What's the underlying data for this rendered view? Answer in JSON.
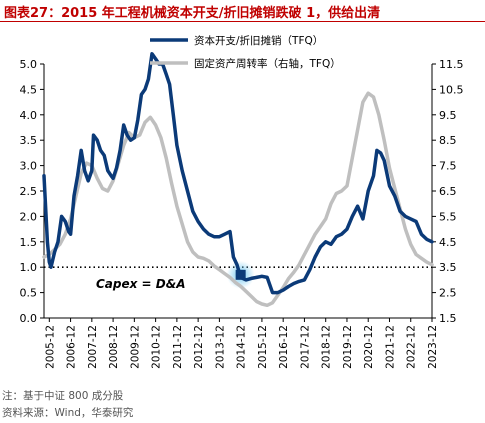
{
  "figure": {
    "title": "图表27：2015 年工程机械资本开支/折旧摊销跌破 1，供给出清",
    "note": "注：基于中证 800 成分股",
    "source": "资料来源：Wind，华泰研究"
  },
  "chart_data": {
    "type": "line",
    "title": "",
    "x_range": [
      2005.67,
      2023.92
    ],
    "x_tick_labels": [
      "2005-12",
      "2006-12",
      "2007-12",
      "2008-12",
      "2009-12",
      "2010-12",
      "2011-12",
      "2012-12",
      "2013-12",
      "2014-12",
      "2015-12",
      "2016-12",
      "2017-12",
      "2018-12",
      "2019-12",
      "2020-12",
      "2021-12",
      "2022-12",
      "2023-12"
    ],
    "x_tick_values": [
      2005.92,
      2006.92,
      2007.92,
      2008.92,
      2009.92,
      2010.92,
      2011.92,
      2012.92,
      2013.92,
      2014.92,
      2015.92,
      2016.92,
      2017.92,
      2018.92,
      2019.92,
      2020.92,
      2021.92,
      2022.92,
      2023.92
    ],
    "y_left": {
      "range": [
        0.0,
        5.0
      ],
      "ticks": [
        "0.0",
        "0.5",
        "1.0",
        "1.5",
        "2.0",
        "2.5",
        "3.0",
        "3.5",
        "4.0",
        "4.5",
        "5.0"
      ]
    },
    "y_right": {
      "range": [
        1.5,
        11.5
      ],
      "ticks": [
        "1.5",
        "2.5",
        "3.5",
        "4.5",
        "5.5",
        "6.5",
        "7.5",
        "8.5",
        "9.5",
        "10.5",
        "11.5"
      ]
    },
    "grid": false,
    "legend_position": "top-center",
    "reference_line": {
      "axis": "left",
      "value": 1.0,
      "style": "dotted"
    },
    "annotation": {
      "text": "Capex = D&A",
      "near": [
        2014.92,
        0.85
      ]
    },
    "series": [
      {
        "name": "资本开支/折旧摊销（TFQ）",
        "axis": "left",
        "color": "#0B3A78",
        "points": [
          [
            2005.67,
            2.8
          ],
          [
            2005.83,
            1.5
          ],
          [
            2005.92,
            1.1
          ],
          [
            2006.0,
            1.0
          ],
          [
            2006.17,
            1.3
          ],
          [
            2006.33,
            1.5
          ],
          [
            2006.5,
            2.0
          ],
          [
            2006.67,
            1.9
          ],
          [
            2006.83,
            1.7
          ],
          [
            2006.92,
            1.65
          ],
          [
            2007.08,
            2.4
          ],
          [
            2007.25,
            2.8
          ],
          [
            2007.42,
            3.3
          ],
          [
            2007.58,
            2.9
          ],
          [
            2007.75,
            2.7
          ],
          [
            2007.92,
            2.9
          ],
          [
            2008.0,
            3.6
          ],
          [
            2008.17,
            3.5
          ],
          [
            2008.33,
            3.3
          ],
          [
            2008.5,
            3.2
          ],
          [
            2008.67,
            2.9
          ],
          [
            2008.83,
            2.8
          ],
          [
            2008.92,
            2.75
          ],
          [
            2009.08,
            2.95
          ],
          [
            2009.25,
            3.3
          ],
          [
            2009.42,
            3.8
          ],
          [
            2009.58,
            3.6
          ],
          [
            2009.75,
            3.5
          ],
          [
            2009.92,
            3.55
          ],
          [
            2010.08,
            3.9
          ],
          [
            2010.25,
            4.4
          ],
          [
            2010.42,
            4.5
          ],
          [
            2010.58,
            4.7
          ],
          [
            2010.75,
            5.2
          ],
          [
            2010.92,
            5.1
          ],
          [
            2011.08,
            5.0
          ],
          [
            2011.25,
            5.0
          ],
          [
            2011.42,
            4.8
          ],
          [
            2011.58,
            4.6
          ],
          [
            2011.75,
            4.0
          ],
          [
            2011.92,
            3.4
          ],
          [
            2012.17,
            2.9
          ],
          [
            2012.42,
            2.5
          ],
          [
            2012.67,
            2.1
          ],
          [
            2012.92,
            1.9
          ],
          [
            2013.17,
            1.75
          ],
          [
            2013.42,
            1.65
          ],
          [
            2013.67,
            1.6
          ],
          [
            2013.92,
            1.6
          ],
          [
            2014.17,
            1.65
          ],
          [
            2014.42,
            1.7
          ],
          [
            2014.58,
            1.2
          ],
          [
            2014.75,
            1.05
          ],
          [
            2014.92,
            0.8
          ],
          [
            2015.17,
            0.75
          ],
          [
            2015.42,
            0.78
          ],
          [
            2015.67,
            0.8
          ],
          [
            2015.92,
            0.82
          ],
          [
            2016.17,
            0.8
          ],
          [
            2016.42,
            0.5
          ],
          [
            2016.67,
            0.5
          ],
          [
            2016.92,
            0.55
          ],
          [
            2017.17,
            0.62
          ],
          [
            2017.42,
            0.68
          ],
          [
            2017.67,
            0.72
          ],
          [
            2017.92,
            0.75
          ],
          [
            2018.17,
            0.95
          ],
          [
            2018.42,
            1.2
          ],
          [
            2018.67,
            1.4
          ],
          [
            2018.92,
            1.5
          ],
          [
            2019.17,
            1.45
          ],
          [
            2019.42,
            1.6
          ],
          [
            2019.67,
            1.65
          ],
          [
            2019.92,
            1.75
          ],
          [
            2020.17,
            2.0
          ],
          [
            2020.42,
            2.2
          ],
          [
            2020.67,
            1.95
          ],
          [
            2020.92,
            2.5
          ],
          [
            2021.17,
            2.8
          ],
          [
            2021.33,
            3.3
          ],
          [
            2021.5,
            3.25
          ],
          [
            2021.67,
            3.1
          ],
          [
            2021.92,
            2.6
          ],
          [
            2022.17,
            2.4
          ],
          [
            2022.42,
            2.1
          ],
          [
            2022.67,
            2.0
          ],
          [
            2022.92,
            1.95
          ],
          [
            2023.17,
            1.9
          ],
          [
            2023.42,
            1.65
          ],
          [
            2023.67,
            1.55
          ],
          [
            2023.92,
            1.5
          ]
        ]
      },
      {
        "name": "固定资产周转率（右轴，TFQ）",
        "axis": "right",
        "color": "#BFBFBF",
        "points": [
          [
            2005.67,
            3.9
          ],
          [
            2005.92,
            4.0
          ],
          [
            2006.17,
            4.2
          ],
          [
            2006.42,
            4.4
          ],
          [
            2006.67,
            4.8
          ],
          [
            2006.92,
            5.4
          ],
          [
            2007.17,
            6.3
          ],
          [
            2007.42,
            7.2
          ],
          [
            2007.67,
            7.6
          ],
          [
            2007.92,
            7.5
          ],
          [
            2008.17,
            7.0
          ],
          [
            2008.42,
            6.6
          ],
          [
            2008.67,
            6.5
          ],
          [
            2008.92,
            6.9
          ],
          [
            2009.17,
            7.6
          ],
          [
            2009.42,
            8.3
          ],
          [
            2009.67,
            8.8
          ],
          [
            2009.92,
            8.6
          ],
          [
            2010.17,
            8.7
          ],
          [
            2010.42,
            9.2
          ],
          [
            2010.67,
            9.4
          ],
          [
            2010.92,
            9.1
          ],
          [
            2011.17,
            8.6
          ],
          [
            2011.42,
            7.8
          ],
          [
            2011.67,
            6.8
          ],
          [
            2011.92,
            5.9
          ],
          [
            2012.17,
            5.2
          ],
          [
            2012.42,
            4.5
          ],
          [
            2012.67,
            4.1
          ],
          [
            2012.92,
            3.9
          ],
          [
            2013.17,
            3.85
          ],
          [
            2013.42,
            3.75
          ],
          [
            2013.67,
            3.55
          ],
          [
            2013.92,
            3.4
          ],
          [
            2014.17,
            3.25
          ],
          [
            2014.42,
            3.1
          ],
          [
            2014.67,
            2.9
          ],
          [
            2014.92,
            2.75
          ],
          [
            2015.17,
            2.55
          ],
          [
            2015.42,
            2.35
          ],
          [
            2015.67,
            2.15
          ],
          [
            2015.92,
            2.05
          ],
          [
            2016.17,
            2.0
          ],
          [
            2016.42,
            2.1
          ],
          [
            2016.67,
            2.4
          ],
          [
            2016.92,
            2.7
          ],
          [
            2017.17,
            3.05
          ],
          [
            2017.42,
            3.3
          ],
          [
            2017.67,
            3.6
          ],
          [
            2017.92,
            4.0
          ],
          [
            2018.17,
            4.4
          ],
          [
            2018.42,
            4.8
          ],
          [
            2018.67,
            5.1
          ],
          [
            2018.92,
            5.4
          ],
          [
            2019.17,
            6.0
          ],
          [
            2019.42,
            6.4
          ],
          [
            2019.67,
            6.5
          ],
          [
            2019.92,
            6.7
          ],
          [
            2020.17,
            7.8
          ],
          [
            2020.42,
            8.9
          ],
          [
            2020.67,
            10.0
          ],
          [
            2020.92,
            10.35
          ],
          [
            2021.17,
            10.2
          ],
          [
            2021.42,
            9.5
          ],
          [
            2021.67,
            8.5
          ],
          [
            2021.92,
            7.4
          ],
          [
            2022.17,
            6.6
          ],
          [
            2022.42,
            5.8
          ],
          [
            2022.67,
            5.0
          ],
          [
            2022.92,
            4.4
          ],
          [
            2023.17,
            4.0
          ],
          [
            2023.42,
            3.85
          ],
          [
            2023.67,
            3.7
          ],
          [
            2023.92,
            3.6
          ]
        ]
      }
    ]
  }
}
